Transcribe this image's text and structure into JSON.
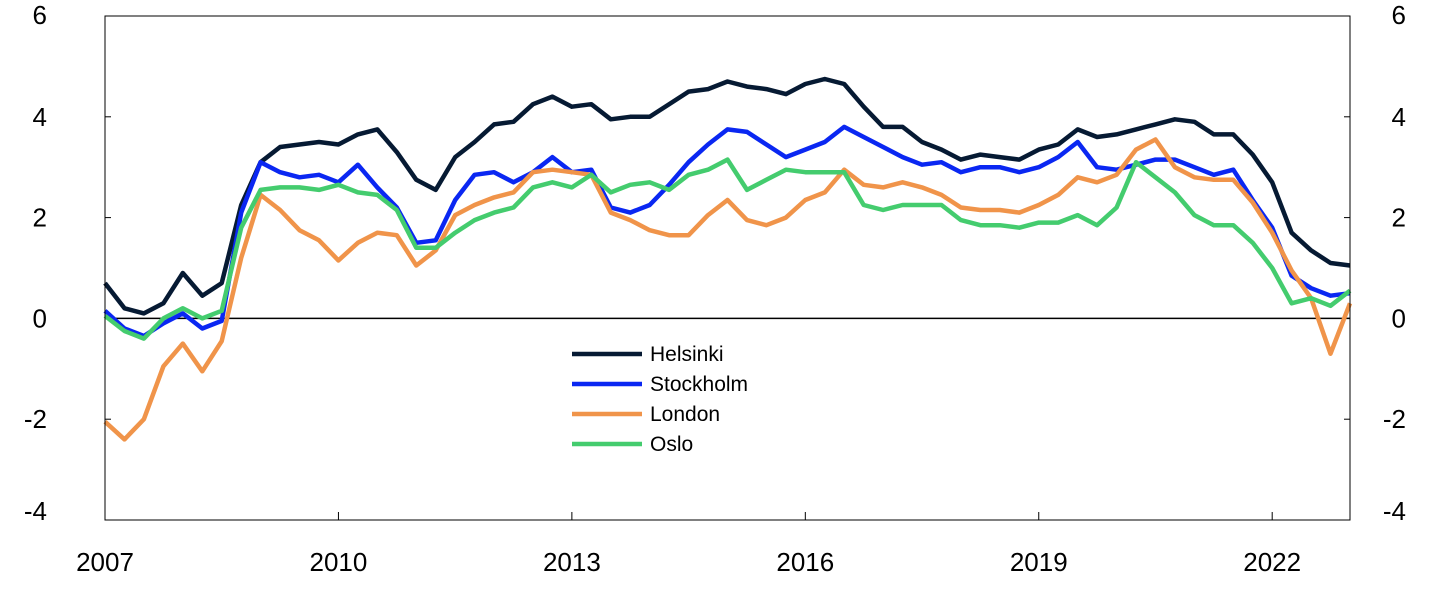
{
  "chart_data": {
    "type": "line",
    "title": "",
    "xlabel": "",
    "ylabel": "",
    "xlim": [
      2007.0,
      2023.0
    ],
    "ylim": [
      -4,
      6
    ],
    "x_ticks": [
      "2007",
      "2010",
      "2013",
      "2016",
      "2019",
      "2022"
    ],
    "y_ticks": [
      "6",
      "4",
      "2",
      "0",
      "-2",
      "-4"
    ],
    "grid": false,
    "legend_position": "center",
    "x": [
      2007.0,
      2007.25,
      2007.5,
      2007.75,
      2008.0,
      2008.25,
      2008.5,
      2008.75,
      2009.0,
      2009.25,
      2009.5,
      2009.75,
      2010.0,
      2010.25,
      2010.5,
      2010.75,
      2011.0,
      2011.25,
      2011.5,
      2011.75,
      2012.0,
      2012.25,
      2012.5,
      2012.75,
      2013.0,
      2013.25,
      2013.5,
      2013.75,
      2014.0,
      2014.25,
      2014.5,
      2014.75,
      2015.0,
      2015.25,
      2015.5,
      2015.75,
      2016.0,
      2016.25,
      2016.5,
      2016.75,
      2017.0,
      2017.25,
      2017.5,
      2017.75,
      2018.0,
      2018.25,
      2018.5,
      2018.75,
      2019.0,
      2019.25,
      2019.5,
      2019.75,
      2020.0,
      2020.25,
      2020.5,
      2020.75,
      2021.0,
      2021.25,
      2021.5,
      2021.75,
      2022.0,
      2022.25,
      2022.5,
      2022.75,
      2023.0
    ],
    "series": [
      {
        "name": "Helsinki",
        "color": "#061a33",
        "values": [
          0.7,
          0.2,
          0.1,
          0.3,
          0.9,
          0.45,
          0.7,
          2.25,
          3.1,
          3.4,
          3.45,
          3.5,
          3.45,
          3.65,
          3.75,
          3.3,
          2.75,
          2.55,
          3.2,
          3.5,
          3.85,
          3.9,
          4.25,
          4.4,
          4.2,
          4.25,
          3.95,
          4.0,
          4.0,
          4.25,
          4.5,
          4.55,
          4.7,
          4.6,
          4.55,
          4.45,
          4.65,
          4.75,
          4.65,
          4.2,
          3.8,
          3.8,
          3.5,
          3.35,
          3.15,
          3.25,
          3.2,
          3.15,
          3.35,
          3.45,
          3.75,
          3.6,
          3.65,
          3.75,
          3.85,
          3.95,
          3.9,
          3.65,
          3.65,
          3.25,
          2.7,
          1.7,
          1.35,
          1.1,
          1.05
        ]
      },
      {
        "name": "Stockholm",
        "color": "#0a27f2",
        "values": [
          0.15,
          -0.2,
          -0.35,
          -0.1,
          0.1,
          -0.2,
          -0.05,
          2.1,
          3.1,
          2.9,
          2.8,
          2.85,
          2.7,
          3.05,
          2.6,
          2.2,
          1.5,
          1.55,
          2.35,
          2.85,
          2.9,
          2.7,
          2.9,
          3.2,
          2.9,
          2.95,
          2.2,
          2.1,
          2.25,
          2.65,
          3.1,
          3.45,
          3.75,
          3.7,
          3.45,
          3.2,
          3.35,
          3.5,
          3.8,
          3.6,
          3.4,
          3.2,
          3.05,
          3.1,
          2.9,
          3.0,
          3.0,
          2.9,
          3.0,
          3.2,
          3.5,
          3.0,
          2.95,
          3.05,
          3.15,
          3.15,
          3.0,
          2.85,
          2.95,
          2.35,
          1.8,
          0.85,
          0.6,
          0.45,
          0.5
        ]
      },
      {
        "name": "London",
        "color": "#f0944a",
        "values": [
          -2.05,
          -2.4,
          -2.0,
          -0.95,
          -0.5,
          -1.05,
          -0.45,
          1.2,
          2.45,
          2.15,
          1.75,
          1.55,
          1.15,
          1.5,
          1.7,
          1.65,
          1.05,
          1.35,
          2.05,
          2.25,
          2.4,
          2.5,
          2.9,
          2.95,
          2.9,
          2.85,
          2.1,
          1.95,
          1.75,
          1.65,
          1.65,
          2.05,
          2.35,
          1.95,
          1.85,
          2.0,
          2.35,
          2.5,
          2.95,
          2.65,
          2.6,
          2.7,
          2.6,
          2.45,
          2.2,
          2.15,
          2.15,
          2.1,
          2.25,
          2.45,
          2.8,
          2.7,
          2.85,
          3.35,
          3.55,
          3.0,
          2.8,
          2.75,
          2.75,
          2.3,
          1.7,
          0.95,
          0.4,
          -0.7,
          0.3
        ]
      },
      {
        "name": "Oslo",
        "color": "#44cc6e",
        "values": [
          0.05,
          -0.25,
          -0.4,
          0.0,
          0.2,
          0.0,
          0.15,
          1.8,
          2.55,
          2.6,
          2.6,
          2.55,
          2.65,
          2.5,
          2.45,
          2.15,
          1.4,
          1.4,
          1.7,
          1.95,
          2.1,
          2.2,
          2.6,
          2.7,
          2.6,
          2.85,
          2.5,
          2.65,
          2.7,
          2.55,
          2.85,
          2.95,
          3.15,
          2.55,
          2.75,
          2.95,
          2.9,
          2.9,
          2.9,
          2.25,
          2.15,
          2.25,
          2.25,
          2.25,
          1.95,
          1.85,
          1.85,
          1.8,
          1.9,
          1.9,
          2.05,
          1.85,
          2.2,
          3.1,
          2.8,
          2.5,
          2.05,
          1.85,
          1.85,
          1.5,
          1.0,
          0.3,
          0.4,
          0.25,
          0.55
        ]
      }
    ]
  }
}
